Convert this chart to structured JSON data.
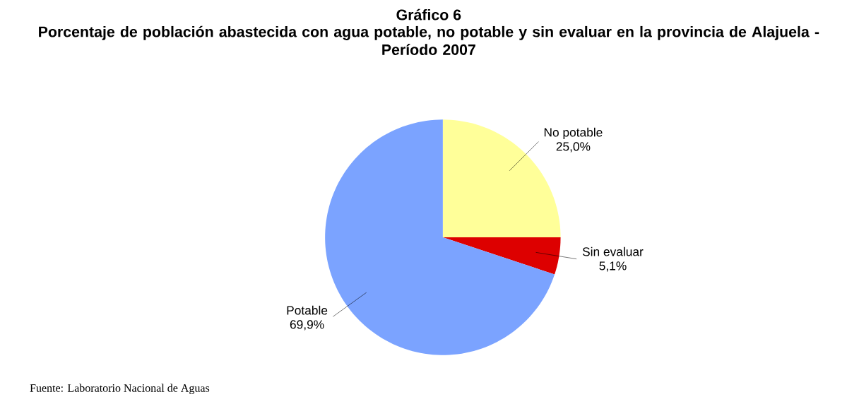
{
  "chart_data": {
    "type": "pie",
    "title": "Gráfico 6",
    "subtitle": "Porcentaje de población abastecida con agua potable, no potable y sin evaluar en la provincia de Alajuela - Período 2007",
    "categories": [
      "No potable",
      "Sin evaluar",
      "Potable"
    ],
    "values": [
      25.0,
      5.1,
      69.9
    ],
    "value_labels": [
      "25,0%",
      "5,1%",
      "69,9%"
    ],
    "colors": [
      "#ffff99",
      "#dd0000",
      "#7ba3ff"
    ],
    "annotations": [
      "Fuente: Laboratorio Nacional de Aguas"
    ]
  }
}
